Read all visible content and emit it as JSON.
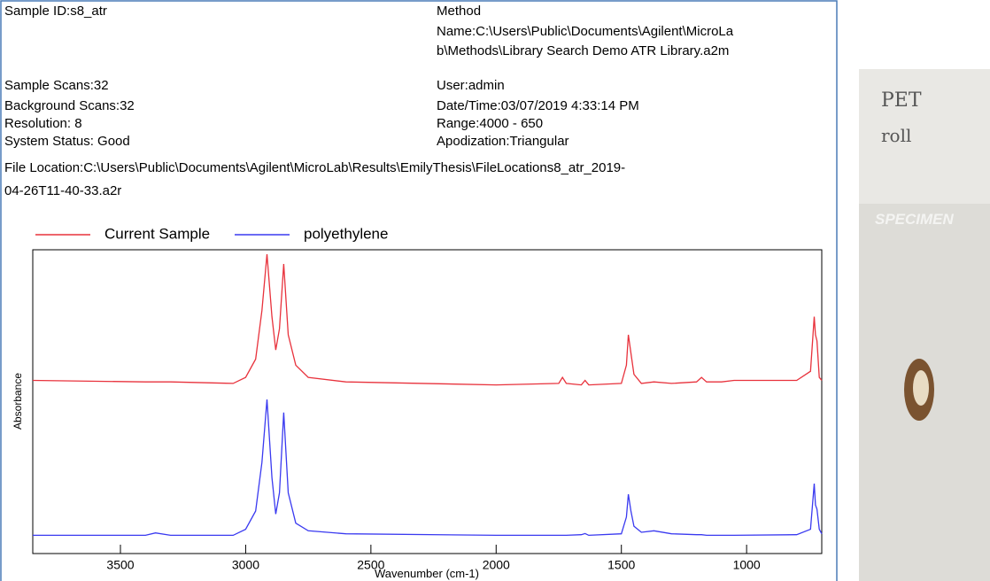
{
  "report": {
    "left_fields": [
      "Sample ID:s8_atr",
      "Sample Scans:32",
      "Background Scans:32",
      "Resolution: 8",
      "System Status: Good"
    ],
    "right_fields": [
      "Method",
      "Name:C:\\Users\\Public\\Documents\\Agilent\\MicroLa",
      "b\\Methods\\Library Search Demo ATR Library.a2m",
      "User:admin",
      "Date/Time:03/07/2019 4:33:14 PM",
      "Range:4000 - 650",
      "Apodization:Triangular"
    ],
    "file_location": [
      "File Location:C:\\Users\\Public\\Documents\\Agilent\\MicroLab\\Results\\EmilyThesis\\FileLocations8_atr_2019-",
      "04-26T11-40-33.a2r"
    ]
  },
  "photo": {
    "labels": [
      "PET",
      "roll",
      "SPECIMEN"
    ]
  },
  "chart_data": {
    "type": "line",
    "xlabel": "Wavenumber (cm-1)",
    "ylabel": "Absorbance",
    "x": [
      3850,
      3400,
      3360,
      3300,
      3050,
      3000,
      2960,
      2935,
      2915,
      2895,
      2880,
      2865,
      2848,
      2830,
      2800,
      2750,
      2600,
      2000,
      1750,
      1735,
      1720,
      1660,
      1645,
      1630,
      1500,
      1480,
      1472,
      1462,
      1450,
      1420,
      1370,
      1300,
      1200,
      1180,
      1160,
      1100,
      1050,
      800,
      745,
      730,
      725,
      719,
      710,
      700
    ],
    "series": [
      {
        "name": "Current Sample",
        "color": "#e8323c",
        "values": [
          0.57,
          0.565,
          0.565,
          0.565,
          0.56,
          0.58,
          0.64,
          0.8,
          0.985,
          0.78,
          0.67,
          0.74,
          0.953,
          0.72,
          0.62,
          0.58,
          0.565,
          0.555,
          0.56,
          0.58,
          0.56,
          0.555,
          0.57,
          0.555,
          0.56,
          0.62,
          0.72,
          0.66,
          0.59,
          0.56,
          0.565,
          0.56,
          0.565,
          0.58,
          0.565,
          0.565,
          0.57,
          0.57,
          0.6,
          0.78,
          0.72,
          0.7,
          0.58,
          0.57
        ]
      },
      {
        "name": "polyethylene",
        "color": "#3a3af0",
        "values": [
          0.06,
          0.06,
          0.068,
          0.06,
          0.06,
          0.08,
          0.14,
          0.3,
          0.507,
          0.25,
          0.13,
          0.2,
          0.464,
          0.2,
          0.1,
          0.075,
          0.065,
          0.06,
          0.06,
          0.06,
          0.06,
          0.062,
          0.066,
          0.06,
          0.065,
          0.12,
          0.195,
          0.14,
          0.09,
          0.07,
          0.075,
          0.065,
          0.062,
          0.062,
          0.06,
          0.06,
          0.06,
          0.062,
          0.08,
          0.23,
          0.16,
          0.146,
          0.08,
          0.065
        ]
      }
    ],
    "xlim": [
      3850,
      700
    ],
    "ylim": [
      0,
      1
    ],
    "xticks": [
      3500,
      3000,
      2500,
      2000,
      1500,
      1000
    ]
  }
}
